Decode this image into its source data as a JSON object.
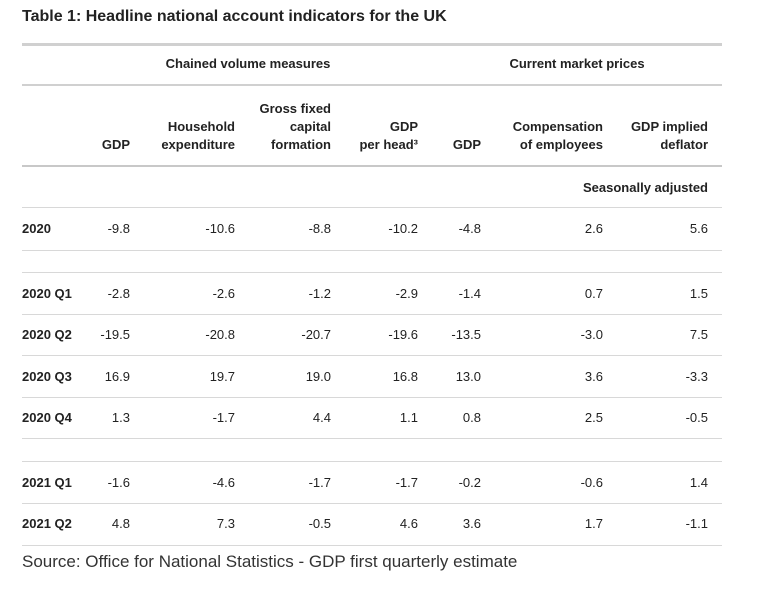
{
  "title": "Table 1: Headline national account indicators for the UK",
  "groups": {
    "chained": "Chained volume measures",
    "current": "Current market prices"
  },
  "columns": {
    "gdp": [
      "GDP"
    ],
    "household": [
      "Household",
      "expenditure"
    ],
    "gfcf": [
      "Gross fixed",
      "capital",
      "formation"
    ],
    "gdp_per_head": [
      "GDP",
      "per head³"
    ],
    "gdp_current": [
      "GDP"
    ],
    "compensation": [
      "Compensation",
      "of employees"
    ],
    "deflator": [
      "GDP implied",
      "deflator"
    ]
  },
  "adjustment_note": "Seasonally adjusted",
  "rows": [
    {
      "label": "2020",
      "values": [
        "-9.8",
        "-10.6",
        "-8.8",
        "-10.2",
        "-4.8",
        "2.6",
        "5.6"
      ]
    },
    {
      "label": "2020 Q1",
      "values": [
        "-2.8",
        "-2.6",
        "-1.2",
        "-2.9",
        "-1.4",
        "0.7",
        "1.5"
      ]
    },
    {
      "label": "2020 Q2",
      "values": [
        "-19.5",
        "-20.8",
        "-20.7",
        "-19.6",
        "-13.5",
        "-3.0",
        "7.5"
      ]
    },
    {
      "label": "2020 Q3",
      "values": [
        "16.9",
        "19.7",
        "19.0",
        "16.8",
        "13.0",
        "3.6",
        "-3.3"
      ]
    },
    {
      "label": "2020 Q4",
      "values": [
        "1.3",
        "-1.7",
        "4.4",
        "1.1",
        "0.8",
        "2.5",
        "-0.5"
      ]
    },
    {
      "label": "2021 Q1",
      "values": [
        "-1.6",
        "-4.6",
        "-1.7",
        "-1.7",
        "-0.2",
        "-0.6",
        "1.4"
      ]
    },
    {
      "label": "2021 Q2",
      "values": [
        "4.8",
        "7.3",
        "-0.5",
        "4.6",
        "3.6",
        "1.7",
        "-1.1"
      ]
    }
  ],
  "source": "Source: Office for National Statistics - GDP first quarterly estimate"
}
